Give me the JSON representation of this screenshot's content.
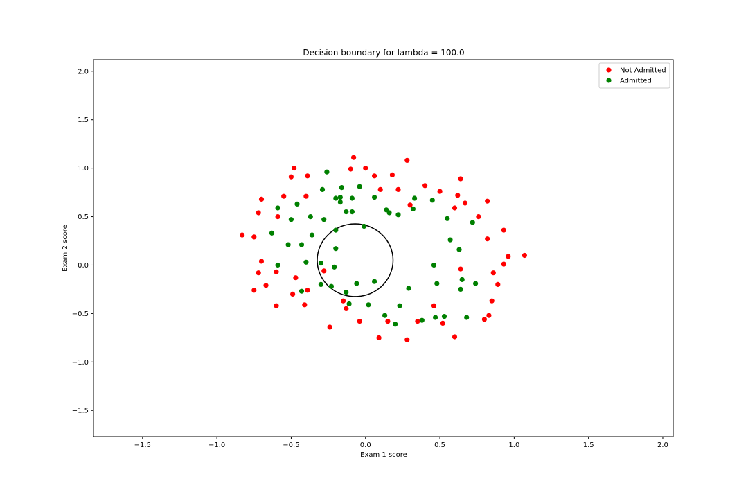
{
  "chart_data": {
    "type": "scatter",
    "title": "Decision boundary for lambda = 100.0",
    "xlabel": "Exam 1 score",
    "ylabel": "Exam 2 score",
    "xlim": [
      -1.83,
      2.07
    ],
    "ylim": [
      -1.77,
      2.12
    ],
    "xticks": [
      -1.5,
      -1.0,
      -0.5,
      0.0,
      0.5,
      1.0,
      1.5,
      2.0
    ],
    "xtick_labels": [
      "−1.5",
      "−1.0",
      "−0.5",
      "0.0",
      "0.5",
      "1.0",
      "1.5",
      "2.0"
    ],
    "yticks": [
      -1.5,
      -1.0,
      -0.5,
      0.0,
      0.5,
      1.0,
      1.5,
      2.0
    ],
    "ytick_labels": [
      "−1.5",
      "−1.0",
      "−0.5",
      "0.0",
      "0.5",
      "1.0",
      "1.5",
      "2.0"
    ],
    "grid": false,
    "legend_position": "top-right",
    "series": [
      {
        "name": "Not Admitted",
        "color": "#ff0000",
        "points": [
          [
            -0.48,
            1.0
          ],
          [
            -0.5,
            0.91
          ],
          [
            -0.39,
            0.92
          ],
          [
            -0.55,
            0.71
          ],
          [
            -0.4,
            0.71
          ],
          [
            -0.7,
            0.68
          ],
          [
            -0.72,
            0.54
          ],
          [
            -0.59,
            0.5
          ],
          [
            -0.83,
            0.31
          ],
          [
            -0.75,
            0.29
          ],
          [
            -0.7,
            0.04
          ],
          [
            -0.72,
            -0.08
          ],
          [
            -0.6,
            -0.07
          ],
          [
            -0.47,
            -0.13
          ],
          [
            -0.28,
            -0.06
          ],
          [
            -0.39,
            -0.26
          ],
          [
            -0.67,
            -0.21
          ],
          [
            -0.75,
            -0.26
          ],
          [
            -0.49,
            -0.3
          ],
          [
            -0.41,
            -0.41
          ],
          [
            -0.6,
            -0.42
          ],
          [
            -0.24,
            -0.64
          ],
          [
            -0.15,
            -0.37
          ],
          [
            -0.13,
            -0.45
          ],
          [
            -0.04,
            -0.58
          ],
          [
            0.09,
            -0.75
          ],
          [
            0.15,
            -0.58
          ],
          [
            0.28,
            -0.77
          ],
          [
            0.35,
            -0.58
          ],
          [
            0.46,
            -0.42
          ],
          [
            0.52,
            -0.6
          ],
          [
            0.6,
            -0.74
          ],
          [
            0.64,
            -0.04
          ],
          [
            0.8,
            -0.56
          ],
          [
            0.83,
            -0.52
          ],
          [
            0.85,
            -0.37
          ],
          [
            0.86,
            -0.08
          ],
          [
            0.89,
            -0.2
          ],
          [
            0.93,
            0.01
          ],
          [
            0.96,
            0.09
          ],
          [
            1.07,
            0.1
          ],
          [
            0.82,
            0.27
          ],
          [
            0.93,
            0.36
          ],
          [
            0.76,
            0.5
          ],
          [
            0.82,
            0.66
          ],
          [
            0.67,
            0.64
          ],
          [
            0.6,
            0.59
          ],
          [
            0.62,
            0.72
          ],
          [
            0.64,
            0.89
          ],
          [
            0.5,
            0.76
          ],
          [
            0.4,
            0.82
          ],
          [
            0.3,
            0.62
          ],
          [
            0.22,
            0.78
          ],
          [
            0.28,
            1.08
          ],
          [
            0.18,
            0.93
          ],
          [
            0.1,
            0.78
          ],
          [
            0.06,
            0.92
          ],
          [
            0.0,
            1.0
          ],
          [
            -0.08,
            1.11
          ],
          [
            -0.1,
            0.99
          ]
        ]
      },
      {
        "name": "Admitted",
        "color": "#008000",
        "points": [
          [
            -0.26,
            0.96
          ],
          [
            -0.29,
            0.78
          ],
          [
            -0.16,
            0.8
          ],
          [
            -0.04,
            0.81
          ],
          [
            -0.2,
            0.69
          ],
          [
            -0.17,
            0.7
          ],
          [
            -0.09,
            0.69
          ],
          [
            -0.17,
            0.65
          ],
          [
            -0.46,
            0.63
          ],
          [
            -0.59,
            0.59
          ],
          [
            -0.13,
            0.55
          ],
          [
            -0.09,
            0.55
          ],
          [
            -0.5,
            0.47
          ],
          [
            -0.37,
            0.5
          ],
          [
            -0.28,
            0.47
          ],
          [
            -0.2,
            0.36
          ],
          [
            -0.63,
            0.33
          ],
          [
            -0.36,
            0.31
          ],
          [
            -0.52,
            0.21
          ],
          [
            -0.43,
            0.21
          ],
          [
            -0.2,
            0.17
          ],
          [
            -0.59,
            0.0
          ],
          [
            -0.4,
            0.03
          ],
          [
            -0.3,
            0.02
          ],
          [
            -0.21,
            -0.02
          ],
          [
            -0.43,
            -0.27
          ],
          [
            -0.3,
            -0.2
          ],
          [
            -0.23,
            -0.22
          ],
          [
            -0.13,
            -0.28
          ],
          [
            -0.11,
            -0.4
          ],
          [
            -0.06,
            -0.19
          ],
          [
            0.02,
            -0.41
          ],
          [
            0.06,
            -0.17
          ],
          [
            0.13,
            -0.52
          ],
          [
            0.2,
            -0.61
          ],
          [
            0.23,
            -0.42
          ],
          [
            0.29,
            -0.24
          ],
          [
            0.38,
            -0.57
          ],
          [
            0.46,
            0.0
          ],
          [
            0.48,
            -0.19
          ],
          [
            0.47,
            -0.54
          ],
          [
            0.53,
            -0.53
          ],
          [
            0.64,
            -0.25
          ],
          [
            0.65,
            -0.15
          ],
          [
            0.68,
            -0.54
          ],
          [
            0.74,
            -0.19
          ],
          [
            0.57,
            0.26
          ],
          [
            0.63,
            0.16
          ],
          [
            0.55,
            0.48
          ],
          [
            0.72,
            0.44
          ],
          [
            0.45,
            0.67
          ],
          [
            0.33,
            0.69
          ],
          [
            0.32,
            0.58
          ],
          [
            0.22,
            0.52
          ],
          [
            0.16,
            0.54
          ],
          [
            0.14,
            0.57
          ],
          [
            0.06,
            0.7
          ],
          [
            -0.01,
            0.4
          ]
        ]
      }
    ],
    "decision_boundary": {
      "color": "#000000",
      "center": [
        -0.07,
        0.05
      ],
      "radius_x": 0.255,
      "radius_y": 0.375,
      "label": ""
    }
  }
}
